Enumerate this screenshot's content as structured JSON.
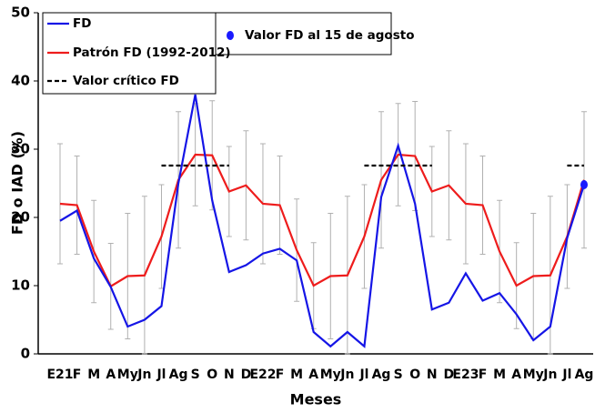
{
  "chart_data": {
    "type": "line",
    "xlabel": "Meses",
    "ylabel": "FD o IAD (%)",
    "categories": [
      "E21",
      "F",
      "M",
      "A",
      "My",
      "Jn",
      "Jl",
      "Ag",
      "S",
      "O",
      "N",
      "D",
      "E22",
      "F",
      "M",
      "A",
      "My",
      "Jn",
      "Jl",
      "Ag",
      "S",
      "O",
      "N",
      "D",
      "E23",
      "F",
      "M",
      "A",
      "My",
      "Jn",
      "Jl",
      "Ag"
    ],
    "ylim": [
      0,
      50
    ],
    "yticks": [
      0,
      10,
      20,
      30,
      40,
      50
    ],
    "grid": false,
    "series": [
      {
        "name": "FD",
        "color": "#1515e6",
        "style": "solid",
        "values": [
          19.5,
          21,
          14,
          9.8,
          4,
          5,
          7,
          25,
          38,
          22.5,
          12,
          13,
          14.7,
          15.4,
          13.7,
          3.2,
          1.1,
          3.2,
          1.1,
          23,
          30.5,
          22,
          6.5,
          7.5,
          11.8,
          7.8,
          8.9,
          5.8,
          2,
          4,
          17,
          24.8
        ]
      },
      {
        "name": "Patrón FD (1992-2012)",
        "color": "#ee1c1c",
        "style": "solid",
        "values": [
          22,
          21.8,
          15,
          9.9,
          11.4,
          11.5,
          17.2,
          25.5,
          29.2,
          29.1,
          23.8,
          24.7,
          22,
          21.8,
          15.2,
          10,
          11.4,
          11.5,
          17.2,
          25.5,
          29.2,
          29,
          23.8,
          24.7,
          22,
          21.8,
          15,
          10,
          11.4,
          11.5,
          17.2,
          25.5
        ],
        "errors": [
          8.8,
          7.2,
          7.5,
          6.3,
          9.2,
          11.6,
          7.6,
          10,
          7.5,
          8,
          6.6,
          8,
          8.8,
          7.2,
          7.5,
          6.3,
          9.2,
          11.6,
          7.6,
          10,
          7.5,
          8,
          6.6,
          8,
          8.8,
          7.2,
          7.5,
          6.3,
          9.2,
          11.6,
          7.6,
          10
        ],
        "error_color": "#b0b0b0"
      },
      {
        "name": "Valor crítico FD",
        "color": "#000000",
        "style": "dashed",
        "values": [
          null,
          null,
          null,
          null,
          null,
          null,
          27.6,
          27.6,
          27.6,
          27.6,
          27.6,
          null,
          null,
          null,
          null,
          null,
          null,
          null,
          27.6,
          27.6,
          27.6,
          27.6,
          27.6,
          null,
          null,
          null,
          null,
          null,
          null,
          null,
          27.6,
          27.6
        ]
      },
      {
        "name": "Valor FD al 15 de agosto",
        "color": "#1a1aff",
        "style": "marker",
        "values": [
          null,
          null,
          null,
          null,
          null,
          null,
          null,
          null,
          null,
          null,
          null,
          null,
          null,
          null,
          null,
          null,
          null,
          null,
          null,
          null,
          null,
          null,
          null,
          null,
          null,
          null,
          null,
          null,
          null,
          null,
          null,
          24.8
        ]
      }
    ]
  }
}
